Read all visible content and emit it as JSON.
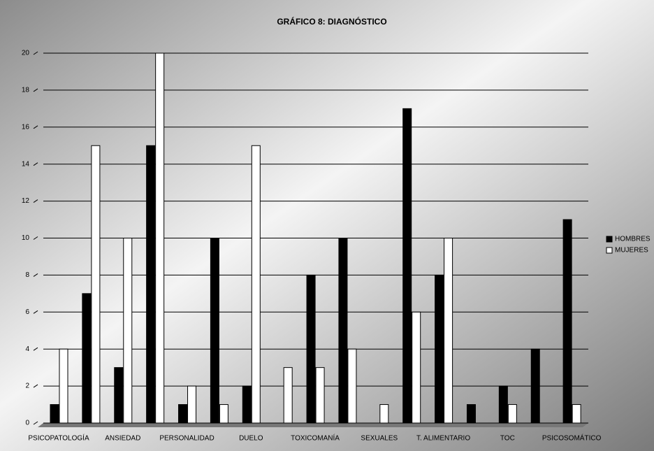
{
  "chart_data": {
    "type": "bar",
    "title": "GRÁFICO 8: DIAGNÓSTICO",
    "categories": [
      "PSICOPATOLOGÍA",
      null,
      "ANSIEDAD",
      null,
      "PERSONALIDAD",
      null,
      "DUELO",
      null,
      "TOXICOMANÍA",
      null,
      "SEXUALES",
      null,
      "T. ALIMENTARIO",
      null,
      "TOC",
      null,
      "PSICOSOMÁTICO"
    ],
    "series": [
      {
        "name": "HOMBRES",
        "color": "#000000",
        "values": [
          1,
          7,
          3,
          15,
          1,
          10,
          2,
          0,
          8,
          10,
          0,
          17,
          8,
          1,
          2,
          4,
          11
        ]
      },
      {
        "name": "MUJERES",
        "color": "#ffffff",
        "values": [
          4,
          15,
          10,
          20,
          2,
          1,
          15,
          3,
          3,
          4,
          1,
          6,
          10,
          0,
          1,
          0,
          1
        ]
      }
    ],
    "ylim": [
      0,
      20
    ],
    "yticks": [
      0,
      2,
      4,
      6,
      8,
      10,
      12,
      14,
      16,
      18,
      20
    ],
    "grid": true,
    "legend": "right"
  }
}
